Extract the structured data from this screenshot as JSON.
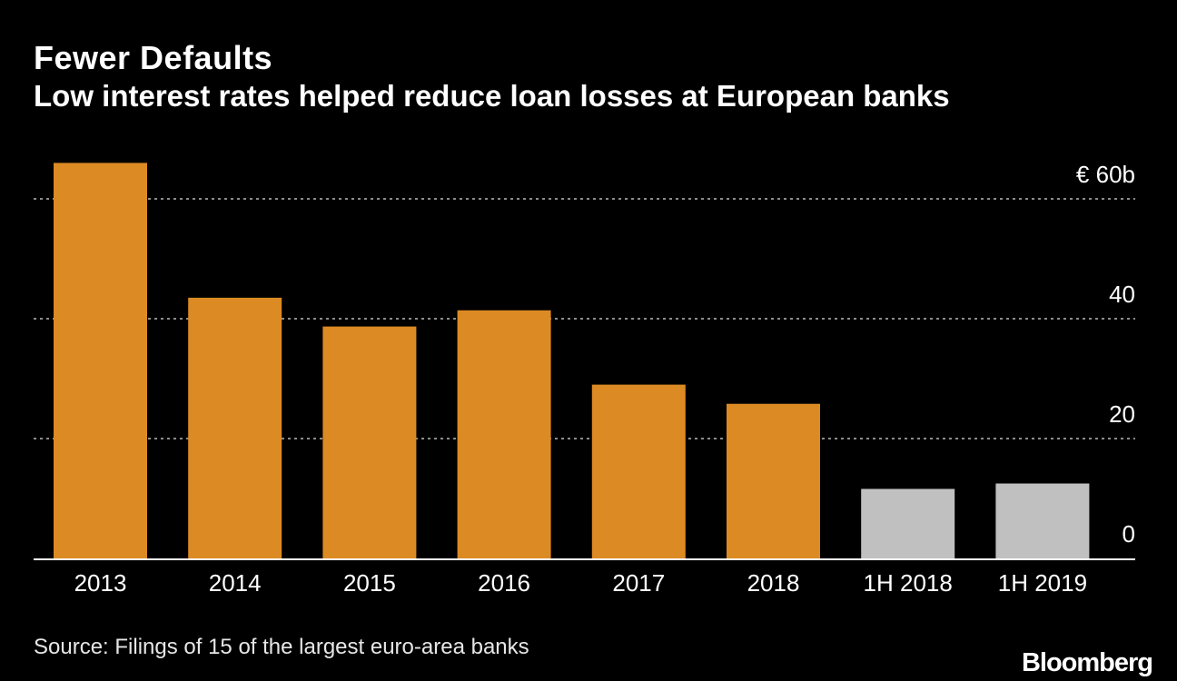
{
  "header": {
    "title": "Fewer Defaults",
    "subtitle": "Low interest rates helped reduce loan losses at European banks"
  },
  "footer": {
    "source": "Source: Filings of 15 of the largest euro-area banks",
    "brand": "Bloomberg"
  },
  "colors": {
    "background": "#000000",
    "full_year_bar": "#dc8a23",
    "half_year_bar": "#c0c0c0",
    "gridline": "#8c8c8c",
    "axis_line": "#ffffff",
    "text": "#ffffff"
  },
  "chart_data": {
    "type": "bar",
    "title": "Fewer Defaults",
    "subtitle": "Low interest rates helped reduce loan losses at European banks",
    "categories": [
      "2013",
      "2014",
      "2015",
      "2016",
      "2017",
      "2018",
      "1H 2018",
      "1H 2019"
    ],
    "values": [
      66,
      43.5,
      38.7,
      41.4,
      29,
      25.8,
      11.6,
      12.5
    ],
    "bar_colors": [
      "#dc8a23",
      "#dc8a23",
      "#dc8a23",
      "#dc8a23",
      "#dc8a23",
      "#dc8a23",
      "#c0c0c0",
      "#c0c0c0"
    ],
    "ylim": [
      0,
      66
    ],
    "yticks": [
      0,
      20,
      40,
      60
    ],
    "ytick_labels": [
      "0",
      "20",
      "40",
      "€ 60b"
    ],
    "y_axis_position": "right",
    "grid": "horizontal dotted",
    "xlabel": "",
    "ylabel": ""
  }
}
